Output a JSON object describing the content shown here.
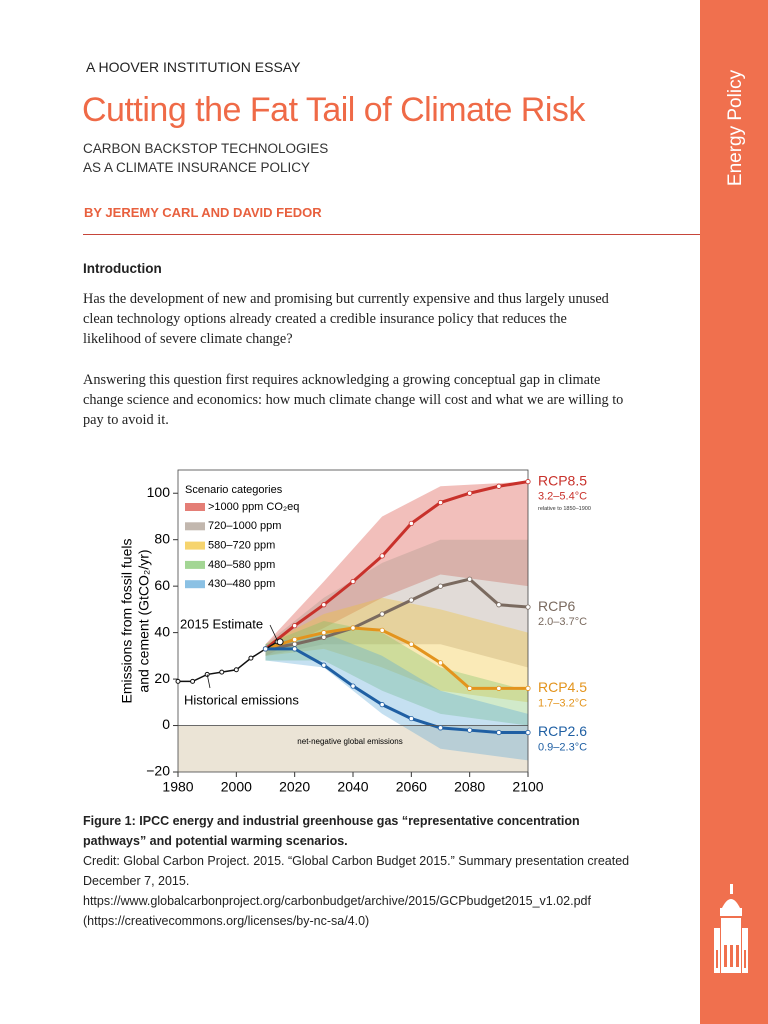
{
  "header": {
    "series_label": "A HOOVER INSTITUTION ESSAY",
    "title": "Cutting the Fat Tail of Climate Risk",
    "subtitle": [
      "CARBON BACKSTOP TECHNOLOGIES",
      "AS A CLIMATE INSURANCE POLICY"
    ],
    "byline": "BY JEREMY CARL AND DAVID FEDOR"
  },
  "sidebar": {
    "label": "Energy Policy"
  },
  "body": {
    "heading": "Introduction",
    "paragraphs": [
      "Has the development of new and promising but currently expensive and thus largely unused clean technology options already created a credible insurance policy that reduces the likelihood of severe climate change?",
      "Answering this question first requires acknowledging a growing conceptual gap in climate change science and economics: how much climate change will cost and what we are willing to pay to avoid it."
    ]
  },
  "figure": {
    "chart_data": {
      "type": "line",
      "y_label": [
        "Emissions from fossil fuels",
        "and cement (GtCO₂/yr)"
      ],
      "xlim": [
        1980,
        2100
      ],
      "ylim": [
        -20,
        110
      ],
      "xticks": [
        1980,
        2000,
        2020,
        2040,
        2060,
        2080,
        2100
      ],
      "yticks": [
        {
          "value": -20,
          "label": "−20"
        },
        0,
        20,
        40,
        60,
        80,
        100
      ],
      "legend_title": "Scenario categories",
      "bands_x": [
        2010,
        2030,
        2050,
        2070,
        2100
      ],
      "bands": [
        {
          "name": ">1000 ppm CO₂eq",
          "color": "#d9473c",
          "low": [
            30,
            42,
            55,
            65,
            60
          ],
          "high": [
            35,
            62,
            90,
            103,
            105
          ]
        },
        {
          "name": "720–1000 ppm",
          "color": "#a8988c",
          "low": [
            30,
            35,
            35,
            35,
            25
          ],
          "high": [
            35,
            55,
            70,
            80,
            80
          ]
        },
        {
          "name": "580–720 ppm",
          "color": "#f2c230",
          "low": [
            30,
            33,
            25,
            15,
            10
          ],
          "high": [
            35,
            48,
            55,
            50,
            40
          ]
        },
        {
          "name": "480–580 ppm",
          "color": "#7cc466",
          "low": [
            28,
            28,
            15,
            5,
            0
          ],
          "high": [
            35,
            45,
            40,
            25,
            15
          ]
        },
        {
          "name": "430–480 ppm",
          "color": "#5aa7d8",
          "low": [
            28,
            25,
            5,
            -10,
            -15
          ],
          "high": [
            35,
            40,
            30,
            15,
            5
          ]
        }
      ],
      "x": [
        2010,
        2020,
        2030,
        2040,
        2050,
        2060,
        2070,
        2080,
        2090,
        2100
      ],
      "series": [
        {
          "name": "RCP8.5",
          "temp": "3.2–5.4°C",
          "note": "relative to 1850–1900",
          "color": "#c8312b",
          "values": [
            33,
            43,
            52,
            62,
            73,
            87,
            96,
            100,
            103,
            105
          ]
        },
        {
          "name": "RCP6",
          "temp": "2.0–3.7°C",
          "color": "#7a6a5f",
          "values": [
            33,
            35,
            38,
            42,
            48,
            54,
            60,
            63,
            52,
            51
          ]
        },
        {
          "name": "RCP4.5",
          "temp": "1.7–3.2°C",
          "color": "#e3941d",
          "values": [
            33,
            37,
            40,
            42,
            41,
            35,
            27,
            16,
            16,
            16
          ]
        },
        {
          "name": "RCP2.6",
          "temp": "0.9–2.3°C",
          "color": "#1f5fa3",
          "values": [
            33,
            33,
            26,
            17,
            9,
            3,
            -1,
            -2,
            -3,
            -3
          ]
        }
      ],
      "historical": {
        "label": "Historical emissions",
        "color": "#111111",
        "x": [
          1980,
          1985,
          1990,
          1995,
          2000,
          2005,
          2010,
          2014
        ],
        "values": [
          19,
          19,
          22,
          23,
          24,
          29,
          33,
          36
        ]
      },
      "estimate": {
        "label": "2015 Estimate",
        "x": 2015,
        "y": 36
      },
      "negative_label": "net-negative global emissions"
    },
    "caption": "Figure 1: IPCC energy and industrial greenhouse gas “representative concentration pathways” and potential warming scenarios.",
    "credit": [
      "Credit: Global Carbon Project. 2015. “Global Carbon Budget 2015.” Summary presentation created December 7, 2015.",
      "https://www.globalcarbonproject.org/carbonbudget/archive/2015/GCPbudget2015_v1.02.pdf",
      "(https://creativecommons.org/licenses/by-nc-sa/4.0)"
    ]
  }
}
